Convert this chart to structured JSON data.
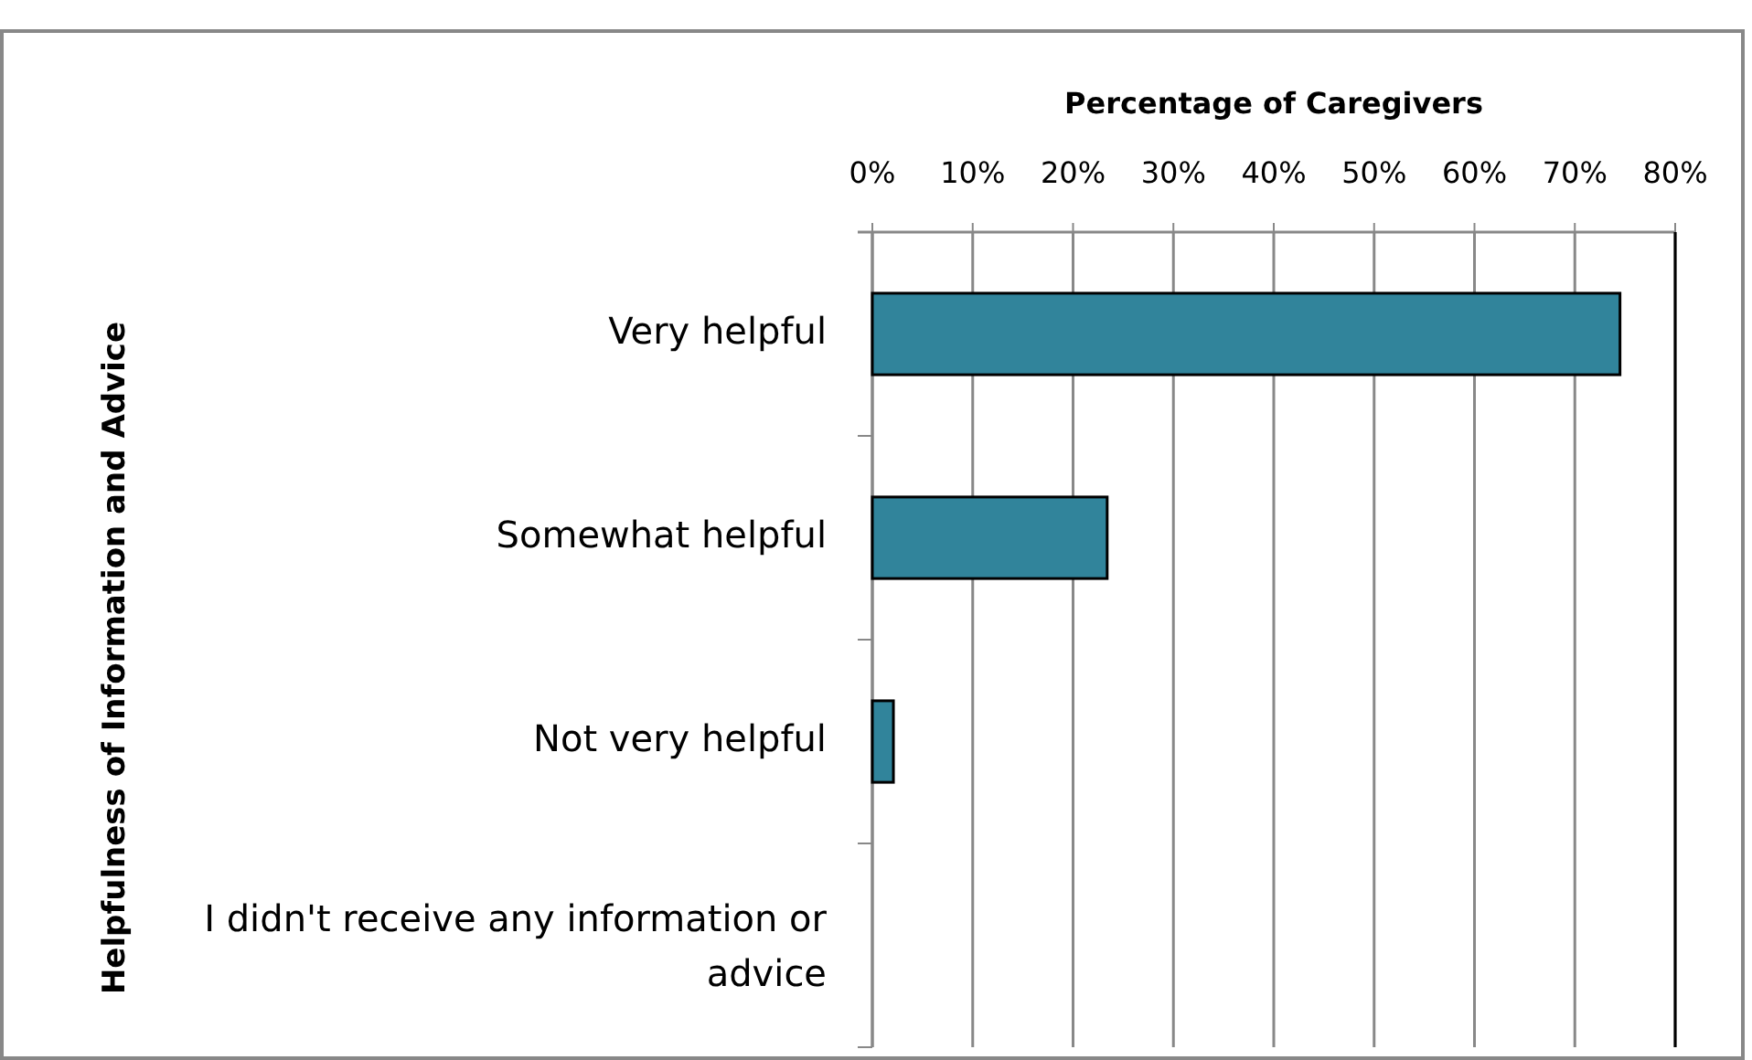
{
  "chart_data": {
    "type": "bar",
    "orientation": "horizontal",
    "xlabel": "Percentage of Caregivers",
    "ylabel": "Helpfulness of Information and Advice",
    "categories": [
      "Very helpful",
      "Somewhat helpful",
      "Not very helpful",
      "I didn't receive any information or advice"
    ],
    "values": [
      74.5,
      23.4,
      2.1,
      0
    ],
    "color": "#31849b",
    "xlim": [
      0,
      80
    ],
    "xticks": [
      {
        "value": 0,
        "label": "0%"
      },
      {
        "value": 10,
        "label": "10%"
      },
      {
        "value": 20,
        "label": "20%"
      },
      {
        "value": 30,
        "label": "30%"
      },
      {
        "value": 40,
        "label": "40%"
      },
      {
        "value": 50,
        "label": "50%"
      },
      {
        "value": 60,
        "label": "60%"
      },
      {
        "value": 70,
        "label": "70%"
      },
      {
        "value": 80,
        "label": "80%"
      }
    ],
    "grid": "x"
  }
}
